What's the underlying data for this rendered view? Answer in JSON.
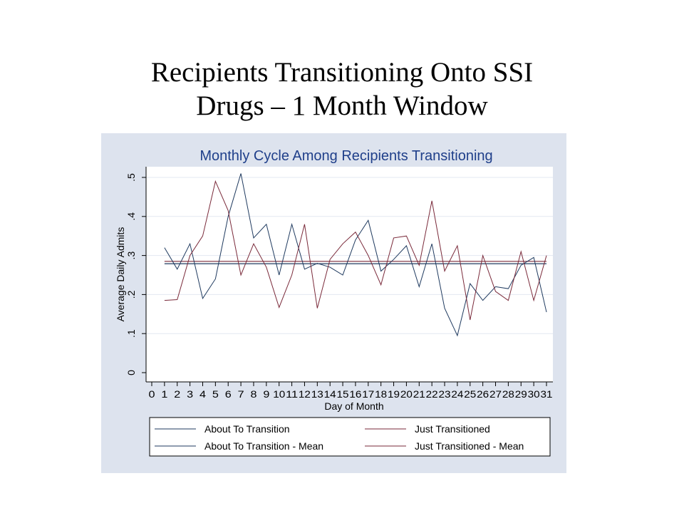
{
  "slide": {
    "title_line1": "Recipients Transitioning Onto SSI",
    "title_line2": "Drugs – 1 Month Window"
  },
  "colors": {
    "about": "#1f3a5f",
    "just": "#7a2a3a",
    "chart_title": "#1f3f8a",
    "panel_bg": "#dde3ee",
    "grid": "#e3e8f1"
  },
  "chart_data": {
    "type": "line",
    "title": "Monthly Cycle Among Recipients Transitioning",
    "xlabel": "Day of Month",
    "ylabel": "Average Daily Admits",
    "xlim": [
      0,
      31
    ],
    "ylim": [
      0,
      0.5
    ],
    "x_ticks": [
      "0",
      "1",
      "2",
      "3",
      "4",
      "5",
      "6",
      "7",
      "8",
      "9",
      "10",
      "11",
      "12",
      "13",
      "14",
      "15",
      "16",
      "17",
      "18",
      "19",
      "20",
      "21",
      "22",
      "23",
      "24",
      "25",
      "26",
      "27",
      "28",
      "29",
      "30",
      "31"
    ],
    "y_ticks": [
      {
        "value": 0,
        "label": "0"
      },
      {
        "value": 0.1,
        "label": ".1"
      },
      {
        "value": 0.2,
        "label": ".2"
      },
      {
        "value": 0.3,
        "label": ".3"
      },
      {
        "value": 0.4,
        "label": ".4"
      },
      {
        "value": 0.5,
        "label": ".5"
      }
    ],
    "grid": true,
    "legend_position": "bottom",
    "x": [
      1,
      2,
      3,
      4,
      5,
      6,
      7,
      8,
      9,
      10,
      11,
      12,
      13,
      14,
      15,
      16,
      17,
      18,
      19,
      20,
      21,
      22,
      23,
      24,
      25,
      26,
      27,
      28,
      29,
      30,
      31
    ],
    "series": [
      {
        "name": "About To Transition",
        "color_key": "about",
        "values": [
          0.32,
          0.265,
          0.33,
          0.19,
          0.24,
          0.4,
          0.51,
          0.345,
          0.38,
          0.25,
          0.38,
          0.265,
          0.28,
          0.27,
          0.25,
          0.34,
          0.39,
          0.26,
          0.29,
          0.325,
          0.22,
          0.33,
          0.165,
          0.095,
          0.228,
          0.185,
          0.22,
          0.215,
          0.275,
          0.295,
          0.155
        ]
      },
      {
        "name": "Just Transitioned",
        "color_key": "just",
        "values": [
          0.185,
          0.187,
          0.3,
          0.35,
          0.49,
          0.415,
          0.25,
          0.33,
          0.27,
          0.167,
          0.25,
          0.38,
          0.165,
          0.29,
          0.33,
          0.36,
          0.3,
          0.225,
          0.345,
          0.35,
          0.275,
          0.44,
          0.26,
          0.325,
          0.135,
          0.3,
          0.208,
          0.185,
          0.31,
          0.185,
          0.3
        ]
      },
      {
        "name": "About To Transition - Mean",
        "color_key": "about",
        "mean": 0.279,
        "range": [
          1,
          31
        ]
      },
      {
        "name": "Just Transitioned - Mean",
        "color_key": "just",
        "mean": 0.285,
        "range": [
          1,
          31
        ]
      }
    ]
  }
}
